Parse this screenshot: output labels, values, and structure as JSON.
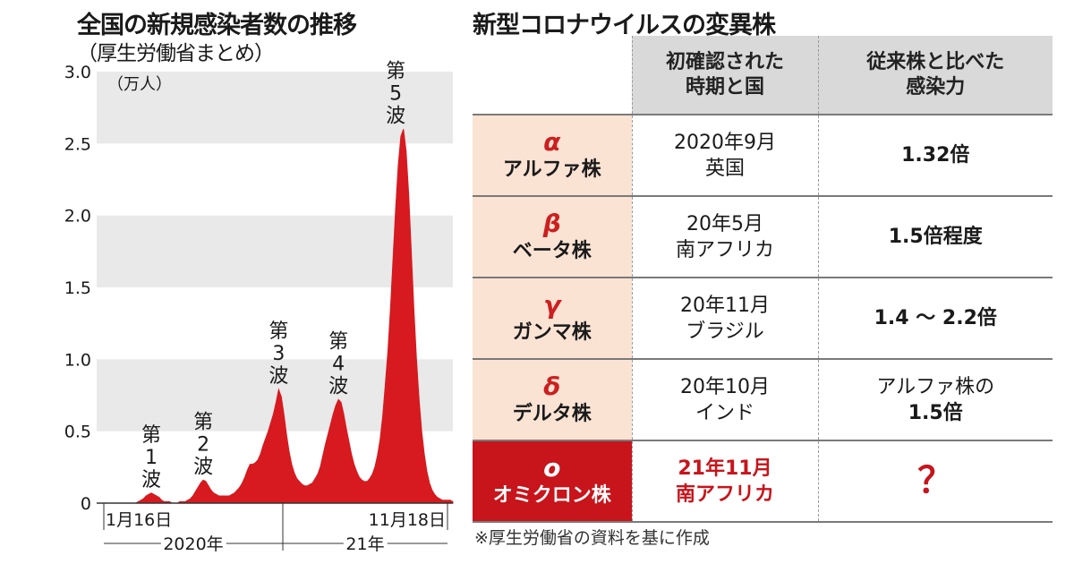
{
  "left": {
    "title": "全国の新規感染者数の推移",
    "subtitle": "（厚生労働省まとめ）"
  },
  "chart_data": {
    "type": "area",
    "unit_label": "（万人）",
    "ylim": [
      0,
      3.0
    ],
    "y_ticks": [
      "0",
      "0.5",
      "1.0",
      "1.5",
      "2.0",
      "2.5",
      "3.0"
    ],
    "grid": "alternating horizontal bands",
    "x_start_label": "1月16日",
    "x_end_label": "11月18日",
    "year_labels": [
      "2020年",
      "21年"
    ],
    "color": "#d61a1f",
    "peaks": [
      {
        "label": [
          "第",
          "1",
          "波"
        ],
        "value": 0.07
      },
      {
        "label": [
          "第",
          "2",
          "波"
        ],
        "value": 0.16
      },
      {
        "label": [
          "第",
          "3",
          "波"
        ],
        "value": 0.79
      },
      {
        "label": [
          "第",
          "4",
          "波"
        ],
        "value": 0.72
      },
      {
        "label": [
          "第",
          "5",
          "波"
        ],
        "value": 2.6
      }
    ],
    "series": [
      {
        "values": [
          0,
          0,
          0,
          0,
          0,
          0,
          0,
          0,
          0,
          0,
          0,
          0,
          0,
          0,
          0,
          0,
          0.01,
          0.02,
          0.03,
          0.05,
          0.06,
          0.07,
          0.06,
          0.05,
          0.04,
          0.02,
          0.01,
          0.01,
          0.01,
          0,
          0,
          0,
          0.01,
          0.01,
          0.01,
          0.02,
          0.03,
          0.05,
          0.08,
          0.11,
          0.14,
          0.16,
          0.15,
          0.12,
          0.09,
          0.07,
          0.06,
          0.05,
          0.05,
          0.05,
          0.05,
          0.05,
          0.06,
          0.07,
          0.09,
          0.11,
          0.14,
          0.18,
          0.23,
          0.27,
          0.27,
          0.28,
          0.3,
          0.34,
          0.4,
          0.45,
          0.5,
          0.56,
          0.62,
          0.7,
          0.79,
          0.74,
          0.62,
          0.48,
          0.36,
          0.27,
          0.21,
          0.17,
          0.15,
          0.13,
          0.12,
          0.12,
          0.13,
          0.14,
          0.17,
          0.2,
          0.25,
          0.33,
          0.41,
          0.48,
          0.55,
          0.62,
          0.68,
          0.72,
          0.7,
          0.62,
          0.52,
          0.43,
          0.34,
          0.27,
          0.22,
          0.18,
          0.16,
          0.15,
          0.15,
          0.17,
          0.2,
          0.25,
          0.33,
          0.44,
          0.6,
          0.82,
          1.05,
          1.35,
          1.7,
          2.05,
          2.35,
          2.55,
          2.6,
          2.45,
          2.15,
          1.75,
          1.35,
          1.0,
          0.72,
          0.5,
          0.34,
          0.22,
          0.14,
          0.09,
          0.06,
          0.04,
          0.03,
          0.02,
          0.02,
          0.02,
          0.02,
          0.01
        ]
      }
    ]
  },
  "right": {
    "title": "新型コロナウイルスの変異株",
    "headers": [
      "",
      "初確認された\n時期と国",
      "従来株と比べた\n感染力"
    ],
    "rows": [
      {
        "symbol": "α",
        "name": "アルファ株",
        "when1": "2020年9月",
        "when2": "英国",
        "power1": "1.32倍",
        "power2": ""
      },
      {
        "symbol": "β",
        "name": "ベータ株",
        "when1": "20年5月",
        "when2": "南アフリカ",
        "power1": "1.5倍程度",
        "power2": ""
      },
      {
        "symbol": "γ",
        "name": "ガンマ株",
        "when1": "20年11月",
        "when2": "ブラジル",
        "power1": "1.4 ～ 2.2倍",
        "power2": ""
      },
      {
        "symbol": "δ",
        "name": "デルタ株",
        "when1": "20年10月",
        "when2": "インド",
        "power1": "アルファ株の",
        "power2": "1.5倍"
      },
      {
        "symbol": "o",
        "name": "オミクロン株",
        "when1": "21年11月",
        "when2": "南アフリカ",
        "power1": "？",
        "power2": ""
      }
    ],
    "note": "※厚生労働省の資料を基に作成"
  }
}
